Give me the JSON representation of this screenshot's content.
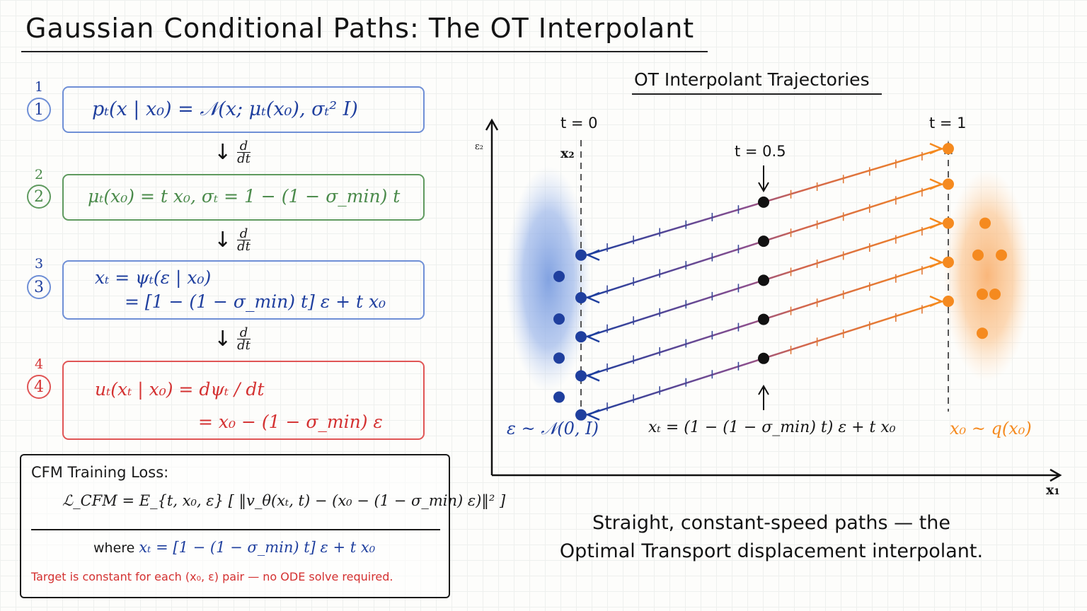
{
  "title": "Gaussian Conditional Paths: The OT Interpolant",
  "steps": [
    {
      "number": "1",
      "circle": "1",
      "lines": [
        "pₜ(x | x₀) = 𝒩(x; μₜ(x₀), σₜ² I)"
      ],
      "color": "#1f3f9e"
    },
    {
      "number": "2",
      "circle": "2",
      "lines": [
        "μₜ(x₀) = t x₀,   σₜ = 1 − (1 − σ_min) t"
      ],
      "color": "#4a8a4a"
    },
    {
      "number": "3",
      "circle": "3",
      "lines": [
        "xₜ = ψₜ(ε | x₀)",
        "= [1 − (1 − σ_min) t] ε + t x₀"
      ],
      "color": "#1f3f9e"
    },
    {
      "number": "4",
      "circle": "4",
      "lines": [
        "uₜ(xₜ | x₀) = dψₜ / dt",
        "= x₀ − (1 − σ_min) ε"
      ],
      "color": "#d43131"
    }
  ],
  "derivative_label": {
    "numerator": "d",
    "denominator": "dt"
  },
  "loss": {
    "title": "CFM Training Loss:",
    "equation": "ℒ_CFM = E_{t, x₀, ε} [ ‖v_θ(xₜ, t) − (x₀ − (1 − σ_min) ε)‖² ]",
    "where_word": "where",
    "where_eq": "xₜ = [1 − (1 − σ_min) t] ε + t x₀",
    "note": "Target is constant for each (x₀, ε) pair — no ODE solve required."
  },
  "chart": {
    "title": "OT Interpolant Trajectories",
    "t0_label": "t = 0",
    "t1_label": "t = 1",
    "tmid_label": "t = 0.5",
    "axis_x_label": "x₁",
    "axis_y_label": "x₂",
    "axis_y_label_small": "ε₂",
    "left_dist_label": "ε ~ 𝒩(0, I)",
    "right_dist_label": "x₀ ~ q(x₀)",
    "mid_formula": "xₜ = (1 − (1 − σ_min) t) ε + t x₀",
    "colors": {
      "noise": "#1f3f9e",
      "data": "#f58a1f",
      "mid": "#111111"
    },
    "trajectories": [
      {
        "t0": 0.62,
        "t1": 0.92
      },
      {
        "t0": 0.5,
        "t1": 0.82
      },
      {
        "t0": 0.39,
        "t1": 0.71
      },
      {
        "t0": 0.28,
        "t1": 0.6
      },
      {
        "t0": 0.17,
        "t1": 0.49
      }
    ],
    "extra_noise_points": [
      0.56,
      0.44,
      0.33,
      0.22
    ],
    "extra_data_points": [
      0.71,
      0.62,
      0.62,
      0.51,
      0.51,
      0.4
    ]
  },
  "caption": {
    "line1": "Straight, constant-speed paths — the",
    "line2": "Optimal Transport displacement interpolant."
  }
}
